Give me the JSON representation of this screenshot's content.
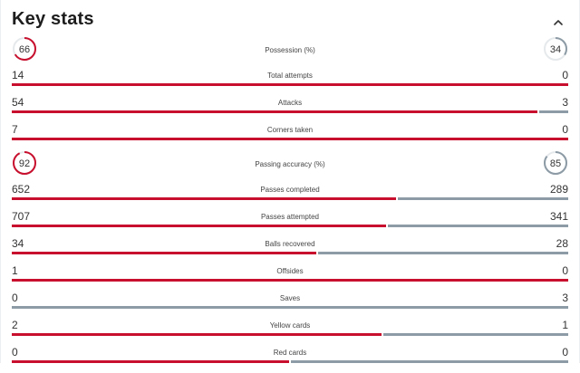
{
  "section": {
    "title": "Key stats",
    "collapse_icon": "chevron-up-icon"
  },
  "colors": {
    "home": "#c8102e",
    "away": "#8c9ba5"
  },
  "rings": {
    "possession": {
      "label": "Possession (%)",
      "home": "66",
      "away": "34"
    },
    "passing_accuracy": {
      "label": "Passing accuracy (%)",
      "home": "92",
      "away": "85"
    }
  },
  "stats": [
    {
      "key": "total_attempts",
      "label": "Total attempts",
      "home": "14",
      "away": "0"
    },
    {
      "key": "attacks",
      "label": "Attacks",
      "home": "54",
      "away": "3"
    },
    {
      "key": "corners_taken",
      "label": "Corners taken",
      "home": "7",
      "away": "0"
    },
    {
      "key": "passes_completed",
      "label": "Passes completed",
      "home": "652",
      "away": "289"
    },
    {
      "key": "passes_attempted",
      "label": "Passes attempted",
      "home": "707",
      "away": "341"
    },
    {
      "key": "balls_recovered",
      "label": "Balls recovered",
      "home": "34",
      "away": "28"
    },
    {
      "key": "offsides",
      "label": "Offsides",
      "home": "1",
      "away": "0"
    },
    {
      "key": "saves",
      "label": "Saves",
      "home": "0",
      "away": "3"
    },
    {
      "key": "yellow_cards",
      "label": "Yellow cards",
      "home": "2",
      "away": "1"
    },
    {
      "key": "red_cards",
      "label": "Red cards",
      "home": "0",
      "away": "0"
    }
  ]
}
